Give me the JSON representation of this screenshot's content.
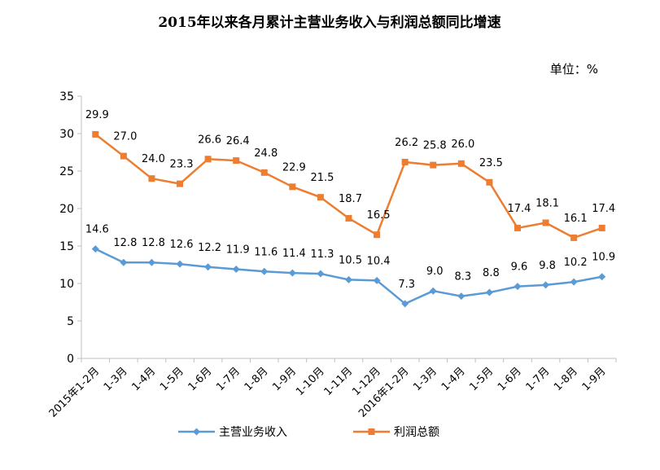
{
  "chart_data": {
    "type": "line",
    "title": "2015年以来各月累计主营业务收入与利润总额同比增速",
    "unit_label": "单位：%",
    "categories": [
      "2015年1-2月",
      "1-3月",
      "1-4月",
      "1-5月",
      "1-6月",
      "1-7月",
      "1-8月",
      "1-9月",
      "1-10月",
      "1-11月",
      "1-12月",
      "2016年1-2月",
      "1-3月",
      "1-4月",
      "1-5月",
      "1-6月",
      "1-7月",
      "1-8月",
      "1-9月"
    ],
    "ylim": [
      0,
      35
    ],
    "yticks": [
      "0",
      "5",
      "10",
      "15",
      "20",
      "25",
      "30",
      "35"
    ],
    "grid": false,
    "legend_position": "bottom",
    "series": [
      {
        "name": "主营业务收入",
        "color": "#5B9BD5",
        "marker": "diamond",
        "values": [
          14.6,
          12.8,
          12.8,
          12.6,
          12.2,
          11.9,
          11.6,
          11.4,
          11.3,
          10.5,
          10.4,
          7.3,
          9.0,
          8.3,
          8.8,
          9.6,
          9.8,
          10.2,
          10.9
        ],
        "labels": [
          "14.6",
          "12.8",
          "12.8",
          "12.6",
          "12.2",
          "11.9",
          "11.6",
          "11.4",
          "11.3",
          "10.5",
          "10.4",
          "7.3",
          "9.0",
          "8.3",
          "8.8",
          "9.6",
          "9.8",
          "10.2",
          "10.9"
        ]
      },
      {
        "name": "利润总额",
        "color": "#ED7D31",
        "marker": "square",
        "values": [
          29.9,
          27.0,
          24.0,
          23.3,
          26.6,
          26.4,
          24.8,
          22.9,
          21.5,
          18.7,
          16.5,
          26.2,
          25.8,
          26.0,
          23.5,
          17.4,
          18.1,
          16.1,
          17.4
        ],
        "labels": [
          "29.9",
          "27.0",
          "24.0",
          "23.3",
          "26.6",
          "26.4",
          "24.8",
          "22.9",
          "21.5",
          "18.7",
          "16.5",
          "26.2",
          "25.8",
          "26.0",
          "23.5",
          "17.4",
          "18.1",
          "16.1",
          "17.4"
        ]
      }
    ]
  }
}
